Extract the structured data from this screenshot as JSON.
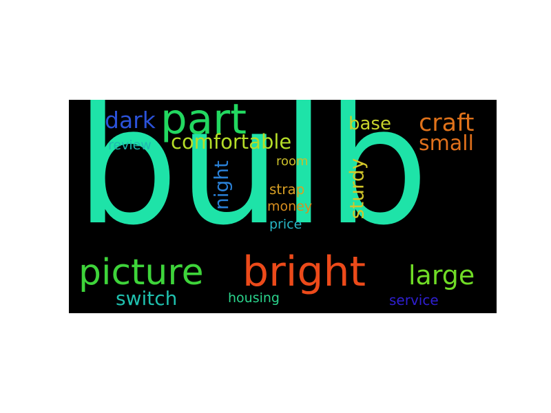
{
  "word_cloud": {
    "background": "#000000",
    "words": {
      "bulb": {
        "text": "bulb",
        "color": "#1ee3a8"
      },
      "part": {
        "text": "part",
        "color": "#22d860"
      },
      "dark": {
        "text": "dark",
        "color": "#2b52d9"
      },
      "comfortable": {
        "text": "comfortable",
        "color": "#b5dd28"
      },
      "review": {
        "text": "review",
        "color": "#1fb8b0"
      },
      "base": {
        "text": "base",
        "color": "#c7d22c"
      },
      "craft": {
        "text": "craft",
        "color": "#e0721a"
      },
      "small": {
        "text": "small",
        "color": "#e0701c"
      },
      "room": {
        "text": "room",
        "color": "#c9be2a"
      },
      "strap": {
        "text": "strap",
        "color": "#d9a024"
      },
      "money": {
        "text": "money",
        "color": "#d98e1e"
      },
      "price": {
        "text": "price",
        "color": "#27b6c6"
      },
      "night": {
        "text": "night",
        "color": "#2a80d6"
      },
      "sturdy": {
        "text": "sturdy",
        "color": "#d3c72a"
      },
      "picture": {
        "text": "picture",
        "color": "#3ed43a"
      },
      "bright": {
        "text": "bright",
        "color": "#ec4a1a"
      },
      "large": {
        "text": "large",
        "color": "#70dc26"
      },
      "switch": {
        "text": "switch",
        "color": "#1fc0ae"
      },
      "housing": {
        "text": "housing",
        "color": "#2ad48c"
      },
      "service": {
        "text": "service",
        "color": "#2f1fd2"
      }
    }
  }
}
